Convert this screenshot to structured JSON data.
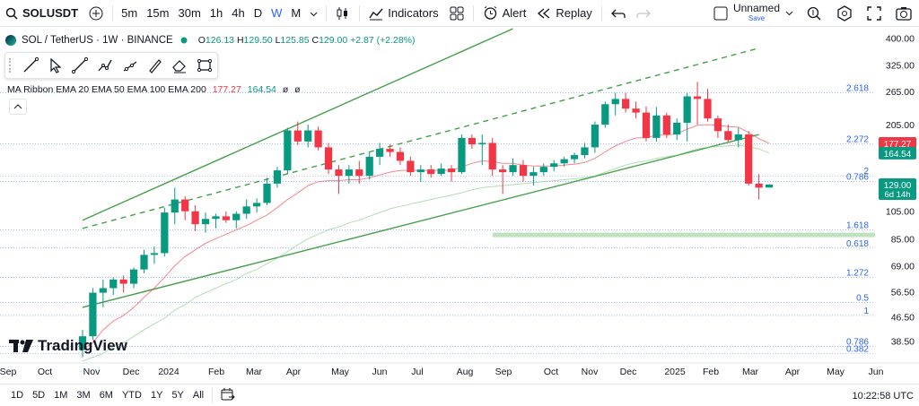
{
  "toolbar": {
    "symbol": "SOLUSDT",
    "timeframes": [
      "5m",
      "15m",
      "30m",
      "1h",
      "4h",
      "D",
      "W",
      "M"
    ],
    "active_timeframe": "W",
    "indicators_label": "Indicators",
    "alert_label": "Alert",
    "replay_label": "Replay",
    "layout_name": "Unnamed",
    "layout_save": "Save"
  },
  "legend": {
    "title": "SOL / TetherUS · 1W · BINANCE",
    "o_key": "O",
    "o_val": "126.13",
    "h_key": "H",
    "h_val": "129.50",
    "l_key": "L",
    "l_val": "125.85",
    "c_key": "C",
    "c_val": "129.00",
    "change": "+2.87 (+2.28%)",
    "ma_label": "MA Ribbon EMA 20 EMA 50 EMA 100 EMA 200",
    "ma_val1": "177.27",
    "ma_val2": "164.54",
    "ma_val3": "ø",
    "ma_val4": "ø"
  },
  "brand": {
    "name": "TradingView"
  },
  "bottom": {
    "ranges": [
      "1D",
      "5D",
      "1M",
      "3M",
      "6M",
      "YTD",
      "1Y",
      "5Y",
      "All"
    ],
    "clock": "10:22:58 UTC"
  },
  "colors": {
    "up": "#089981",
    "down": "#f23645",
    "accent": "#2962ff",
    "fib": "#2962ff",
    "trend": "#43a047"
  },
  "chart_data": {
    "type": "candlestick",
    "title": "SOL / TetherUS · 1W · BINANCE",
    "scale": "log",
    "ylim": [
      33,
      430
    ],
    "y_ticks": [
      "400.00",
      "325.00",
      "265.00",
      "205.00",
      "165.00",
      "125.00",
      "105.00",
      "85.00",
      "69.00",
      "56.50",
      "46.50",
      "38.50"
    ],
    "x_ticks": [
      "Sep",
      "Oct",
      "Nov",
      "Dec",
      "2024",
      "Feb",
      "Mar",
      "Apr",
      "May",
      "Jun",
      "Jul",
      "Aug",
      "Sep",
      "Oct",
      "Nov",
      "Dec",
      "2025",
      "Feb",
      "Mar",
      "Apr",
      "May",
      "Jun"
    ],
    "fib_levels": [
      {
        "label": "2.618",
        "price": 262
      },
      {
        "label": "2.272",
        "price": 177
      },
      {
        "label": "2",
        "price": 138
      },
      {
        "label": "0.786",
        "price": 132
      },
      {
        "label": "1.618",
        "price": 91
      },
      {
        "label": "0.618",
        "price": 79
      },
      {
        "label": "1.272",
        "price": 63
      },
      {
        "label": "0.5",
        "price": 52
      },
      {
        "label": "1",
        "price": 47
      },
      {
        "label": "0.786",
        "price": 37
      },
      {
        "label": "0.382",
        "price": 35
      }
    ],
    "price_tags": [
      {
        "label": "177.27",
        "color": "#f23645"
      },
      {
        "label": "164.54",
        "color": "#089981"
      },
      {
        "label": "129.00",
        "sub": "6d 14h",
        "color": "#089981"
      }
    ],
    "candles": [
      {
        "o": 36,
        "h": 42,
        "l": 34,
        "c": 40
      },
      {
        "o": 40,
        "h": 58,
        "l": 39,
        "c": 56
      },
      {
        "o": 56,
        "h": 62,
        "l": 50,
        "c": 58
      },
      {
        "o": 58,
        "h": 63,
        "l": 55,
        "c": 62
      },
      {
        "o": 62,
        "h": 64,
        "l": 56,
        "c": 60
      },
      {
        "o": 60,
        "h": 68,
        "l": 58,
        "c": 67
      },
      {
        "o": 67,
        "h": 78,
        "l": 65,
        "c": 75
      },
      {
        "o": 75,
        "h": 80,
        "l": 70,
        "c": 76
      },
      {
        "o": 76,
        "h": 108,
        "l": 74,
        "c": 104
      },
      {
        "o": 104,
        "h": 126,
        "l": 95,
        "c": 115
      },
      {
        "o": 115,
        "h": 118,
        "l": 98,
        "c": 105
      },
      {
        "o": 105,
        "h": 110,
        "l": 90,
        "c": 95
      },
      {
        "o": 95,
        "h": 104,
        "l": 89,
        "c": 99
      },
      {
        "o": 99,
        "h": 103,
        "l": 92,
        "c": 101
      },
      {
        "o": 101,
        "h": 105,
        "l": 96,
        "c": 98
      },
      {
        "o": 98,
        "h": 105,
        "l": 92,
        "c": 103
      },
      {
        "o": 103,
        "h": 115,
        "l": 99,
        "c": 109
      },
      {
        "o": 109,
        "h": 116,
        "l": 104,
        "c": 112
      },
      {
        "o": 112,
        "h": 136,
        "l": 110,
        "c": 130
      },
      {
        "o": 130,
        "h": 148,
        "l": 126,
        "c": 144
      },
      {
        "o": 144,
        "h": 200,
        "l": 140,
        "c": 196
      },
      {
        "o": 196,
        "h": 210,
        "l": 175,
        "c": 180
      },
      {
        "o": 180,
        "h": 205,
        "l": 172,
        "c": 196
      },
      {
        "o": 196,
        "h": 202,
        "l": 168,
        "c": 172
      },
      {
        "o": 172,
        "h": 178,
        "l": 140,
        "c": 145
      },
      {
        "o": 145,
        "h": 150,
        "l": 120,
        "c": 138
      },
      {
        "o": 138,
        "h": 150,
        "l": 130,
        "c": 145
      },
      {
        "o": 145,
        "h": 155,
        "l": 130,
        "c": 138
      },
      {
        "o": 138,
        "h": 165,
        "l": 134,
        "c": 160
      },
      {
        "o": 160,
        "h": 178,
        "l": 150,
        "c": 170
      },
      {
        "o": 170,
        "h": 176,
        "l": 160,
        "c": 166
      },
      {
        "o": 166,
        "h": 172,
        "l": 150,
        "c": 155
      },
      {
        "o": 155,
        "h": 160,
        "l": 138,
        "c": 142
      },
      {
        "o": 142,
        "h": 150,
        "l": 132,
        "c": 145
      },
      {
        "o": 145,
        "h": 150,
        "l": 136,
        "c": 140
      },
      {
        "o": 140,
        "h": 152,
        "l": 138,
        "c": 146
      },
      {
        "o": 146,
        "h": 150,
        "l": 132,
        "c": 142
      },
      {
        "o": 142,
        "h": 190,
        "l": 140,
        "c": 185
      },
      {
        "o": 185,
        "h": 190,
        "l": 170,
        "c": 176
      },
      {
        "o": 176,
        "h": 190,
        "l": 150,
        "c": 178
      },
      {
        "o": 178,
        "h": 185,
        "l": 138,
        "c": 145
      },
      {
        "o": 145,
        "h": 150,
        "l": 120,
        "c": 142
      },
      {
        "o": 142,
        "h": 158,
        "l": 138,
        "c": 150
      },
      {
        "o": 150,
        "h": 156,
        "l": 132,
        "c": 138
      },
      {
        "o": 138,
        "h": 148,
        "l": 128,
        "c": 142
      },
      {
        "o": 142,
        "h": 152,
        "l": 138,
        "c": 148
      },
      {
        "o": 148,
        "h": 156,
        "l": 143,
        "c": 152
      },
      {
        "o": 152,
        "h": 160,
        "l": 148,
        "c": 157
      },
      {
        "o": 157,
        "h": 165,
        "l": 152,
        "c": 162
      },
      {
        "o": 162,
        "h": 178,
        "l": 158,
        "c": 172
      },
      {
        "o": 172,
        "h": 210,
        "l": 165,
        "c": 205
      },
      {
        "o": 205,
        "h": 245,
        "l": 200,
        "c": 240
      },
      {
        "o": 240,
        "h": 262,
        "l": 220,
        "c": 250
      },
      {
        "o": 250,
        "h": 262,
        "l": 225,
        "c": 232
      },
      {
        "o": 232,
        "h": 245,
        "l": 215,
        "c": 225
      },
      {
        "o": 225,
        "h": 236,
        "l": 180,
        "c": 185
      },
      {
        "o": 185,
        "h": 235,
        "l": 180,
        "c": 220
      },
      {
        "o": 220,
        "h": 225,
        "l": 185,
        "c": 190
      },
      {
        "o": 190,
        "h": 215,
        "l": 182,
        "c": 208
      },
      {
        "o": 208,
        "h": 262,
        "l": 180,
        "c": 255
      },
      {
        "o": 255,
        "h": 285,
        "l": 205,
        "c": 250
      },
      {
        "o": 250,
        "h": 270,
        "l": 210,
        "c": 215
      },
      {
        "o": 215,
        "h": 220,
        "l": 185,
        "c": 195
      },
      {
        "o": 195,
        "h": 205,
        "l": 178,
        "c": 182
      },
      {
        "o": 182,
        "h": 200,
        "l": 172,
        "c": 190
      },
      {
        "o": 190,
        "h": 195,
        "l": 128,
        "c": 130
      },
      {
        "o": 130,
        "h": 140,
        "l": 115,
        "c": 126
      },
      {
        "o": 126.13,
        "h": 129.5,
        "l": 125.85,
        "c": 129.0
      }
    ],
    "series": [
      {
        "name": "EMA 20",
        "color": "#f23645",
        "values": [
          36,
          38,
          42,
          45,
          47,
          50,
          54,
          58,
          63,
          69,
          74,
          78,
          82,
          85,
          88,
          91,
          94,
          98,
          102,
          108,
          115,
          121,
          128,
          132,
          133,
          133,
          134,
          134,
          136,
          139,
          142,
          144,
          144,
          144,
          144,
          144,
          144,
          148,
          152,
          155,
          154,
          152,
          152,
          150,
          149,
          149,
          149,
          150,
          151,
          153,
          158,
          166,
          174,
          180,
          185,
          185,
          189,
          189,
          191,
          198,
          204,
          205,
          204,
          202,
          201,
          193,
          184,
          177.27
        ]
      },
      {
        "name": "EMA 50",
        "color": "#81c784",
        "values": [
          33,
          34,
          35,
          37,
          38,
          40,
          42,
          44,
          46,
          49,
          51,
          54,
          56,
          58,
          60,
          62,
          65,
          67,
          70,
          73,
          77,
          81,
          85,
          88,
          91,
          93,
          96,
          98,
          101,
          104,
          107,
          109,
          111,
          113,
          115,
          117,
          119,
          121,
          124,
          126,
          127,
          128,
          129,
          130,
          131,
          132,
          133,
          134,
          135,
          136,
          138,
          142,
          146,
          150,
          153,
          155,
          158,
          160,
          162,
          166,
          170,
          172,
          173,
          174,
          175,
          173,
          170,
          164.54
        ]
      }
    ],
    "trendlines": [
      {
        "name": "upper channel",
        "style": "solid",
        "from": {
          "bar": 0,
          "price": 98
        },
        "to": {
          "bar": 42,
          "price": 430
        }
      },
      {
        "name": "rising trendline",
        "style": "solid",
        "from": {
          "bar": 0,
          "price": 50
        },
        "to": {
          "bar": 66,
          "price": 190
        }
      },
      {
        "name": "dashed channel",
        "style": "dashed",
        "from": {
          "bar": 0,
          "price": 92
        },
        "to": {
          "bar": 66,
          "price": 370
        }
      }
    ],
    "support_zone": {
      "from_price": 86,
      "to_price": 89
    }
  }
}
